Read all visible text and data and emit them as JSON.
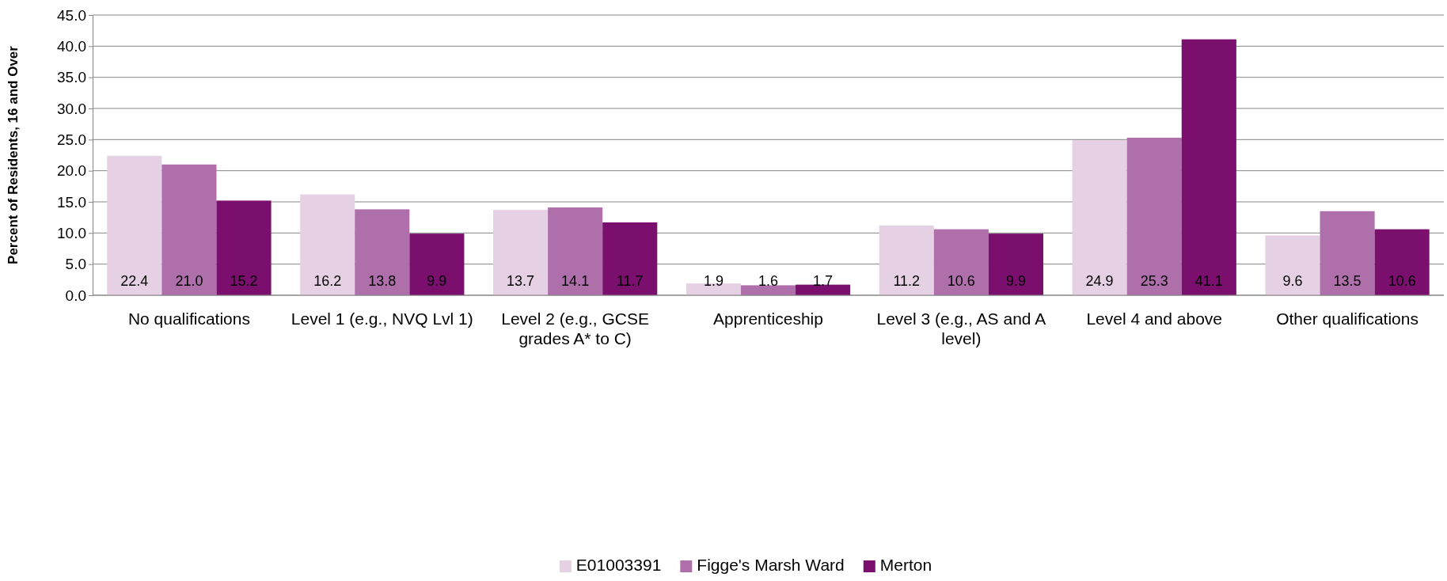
{
  "chart_data": {
    "type": "bar",
    "ylabel": "Percent of Residents, 16 and Over",
    "categories": [
      "No qualifications",
      "Level 1 (e.g., NVQ Lvl 1)",
      "Level 2 (e.g., GCSE grades A* to C)",
      "Apprenticeship",
      "Level 3 (e.g., AS and A level)",
      "Level 4 and above",
      "Other qualifications"
    ],
    "series": [
      {
        "name": "E01003391",
        "color": "#e6d0e3",
        "values": [
          22.4,
          16.2,
          13.7,
          1.9,
          11.2,
          24.9,
          9.6
        ],
        "value_labels": [
          "22.4",
          "16.2",
          "13.7",
          "1.9",
          "11.2",
          "24.9",
          "9.6"
        ]
      },
      {
        "name": "Figge's Marsh Ward",
        "color": "#ae6fab",
        "values": [
          21.0,
          13.8,
          14.1,
          1.6,
          10.6,
          25.3,
          13.5
        ],
        "value_labels": [
          "21.0",
          "13.8",
          "14.1",
          "1.6",
          "10.6",
          "25.3",
          "13.5"
        ]
      },
      {
        "name": "Merton",
        "color": "#7a0f6e",
        "values": [
          15.2,
          9.9,
          11.7,
          1.7,
          9.9,
          41.1,
          10.6
        ],
        "value_labels": [
          "15.2",
          "9.9",
          "11.7",
          "1.7",
          "9.9",
          "41.1",
          "10.6"
        ]
      }
    ],
    "ylim": [
      0,
      45
    ],
    "yticks": [
      {
        "value": 0,
        "label": "0.0"
      },
      {
        "value": 5,
        "label": "5.0"
      },
      {
        "value": 10,
        "label": "10.0"
      },
      {
        "value": 15,
        "label": "15.0"
      },
      {
        "value": 20,
        "label": "20.0"
      },
      {
        "value": 25,
        "label": "25.0"
      },
      {
        "value": 30,
        "label": "30.0"
      },
      {
        "value": 35,
        "label": "35.0"
      },
      {
        "value": 40,
        "label": "40.0"
      },
      {
        "value": 45,
        "label": "45.0"
      }
    ],
    "grid": "y",
    "legend": "bottom"
  }
}
